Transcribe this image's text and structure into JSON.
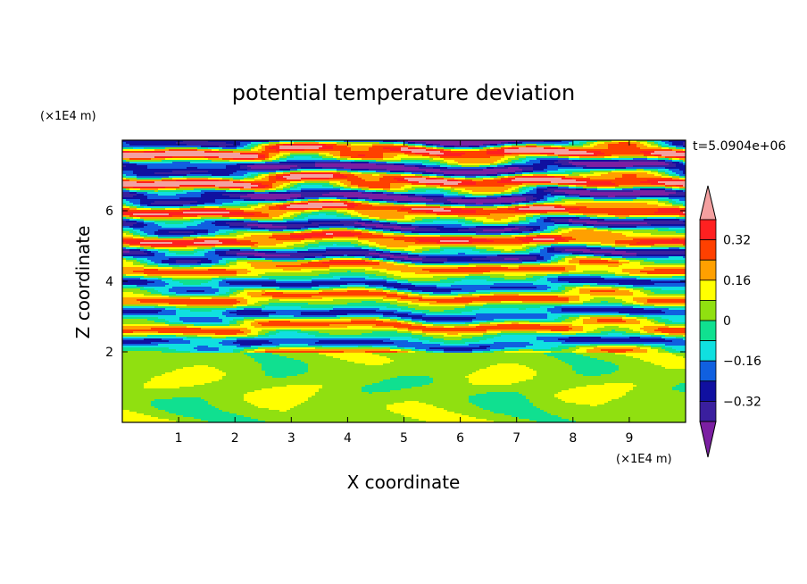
{
  "chart_data": {
    "type": "heatmap",
    "title": "potential temperature deviation",
    "xlabel": "X coordinate",
    "ylabel": "Z coordinate",
    "x_unit": "(×1E4 m)",
    "y_unit": "(×1E4 m)",
    "time_label": "t=5.0904e+06",
    "xlim": [
      0,
      10
    ],
    "ylim": [
      0,
      8
    ],
    "x_ticks": [
      1,
      2,
      3,
      4,
      5,
      6,
      7,
      8,
      9
    ],
    "y_ticks": [
      2,
      4,
      6
    ],
    "colorbar": {
      "levels": [
        -0.4,
        -0.32,
        -0.24,
        -0.16,
        -0.08,
        0,
        0.08,
        0.16,
        0.24,
        0.32,
        0.4
      ],
      "labeled_levels": [
        "0.32",
        "0.16",
        "0",
        "−0.16",
        "−0.32"
      ],
      "colors": [
        "#7b1fa2",
        "#3a1f9e",
        "#1010a0",
        "#1060e0",
        "#10e0e0",
        "#10e090",
        "#90e010",
        "#ffff00",
        "#ffa000",
        "#ff4000",
        "#ff2020",
        "#f4a0a0"
      ],
      "extend": "both"
    }
  }
}
